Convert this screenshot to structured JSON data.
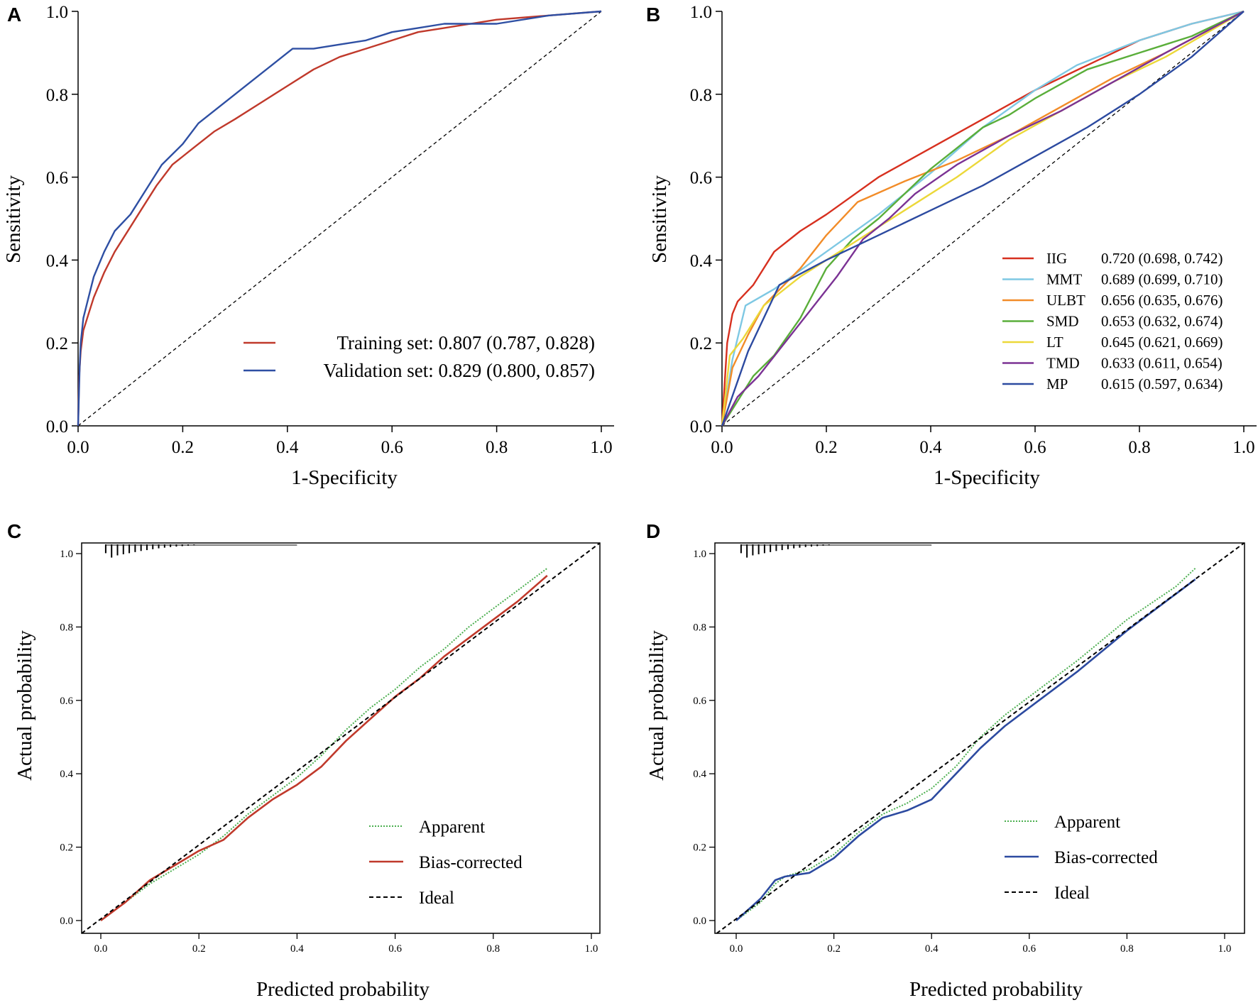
{
  "chart_data": [
    {
      "panel": "A",
      "type": "line",
      "subtype": "roc",
      "xlabel": "1-Specificity",
      "ylabel": "Sensitivity",
      "xlim": [
        0,
        1
      ],
      "ylim": [
        0,
        1
      ],
      "xticks": [
        "0.0",
        "0.2",
        "0.4",
        "0.6",
        "0.8",
        "1.0"
      ],
      "yticks": [
        "0.0",
        "0.2",
        "0.4",
        "0.6",
        "0.8",
        "1.0"
      ],
      "reference_line": "diagonal",
      "legend_position": "bottom-right",
      "series": [
        {
          "name": "Training set",
          "legend": "Training set: 0.807 (0.787, 0.828)",
          "color": "#c0392b",
          "x": [
            0,
            0.002,
            0.005,
            0.01,
            0.02,
            0.03,
            0.05,
            0.07,
            0.1,
            0.12,
            0.15,
            0.18,
            0.22,
            0.26,
            0.3,
            0.35,
            0.4,
            0.45,
            0.5,
            0.55,
            0.6,
            0.65,
            0.7,
            0.8,
            0.9,
            1
          ],
          "y": [
            0,
            0.12,
            0.18,
            0.23,
            0.27,
            0.31,
            0.37,
            0.42,
            0.48,
            0.52,
            0.58,
            0.63,
            0.67,
            0.71,
            0.74,
            0.78,
            0.82,
            0.86,
            0.89,
            0.91,
            0.93,
            0.95,
            0.96,
            0.98,
            0.99,
            1
          ]
        },
        {
          "name": "Validation set",
          "legend": "Validation set: 0.829 (0.800, 0.857)",
          "color": "#2e4fa3",
          "x": [
            0,
            0.003,
            0.005,
            0.01,
            0.02,
            0.03,
            0.05,
            0.07,
            0.1,
            0.13,
            0.16,
            0.2,
            0.23,
            0.27,
            0.3,
            0.34,
            0.38,
            0.41,
            0.45,
            0.5,
            0.55,
            0.6,
            0.65,
            0.7,
            0.8,
            0.9,
            1
          ],
          "y": [
            0,
            0.14,
            0.2,
            0.26,
            0.31,
            0.36,
            0.42,
            0.47,
            0.51,
            0.57,
            0.63,
            0.68,
            0.73,
            0.77,
            0.8,
            0.84,
            0.88,
            0.91,
            0.91,
            0.92,
            0.93,
            0.95,
            0.96,
            0.97,
            0.97,
            0.99,
            1
          ]
        }
      ]
    },
    {
      "panel": "B",
      "type": "line",
      "subtype": "roc",
      "xlabel": "1-Specificity",
      "ylabel": "Sensitivity",
      "xlim": [
        0,
        1
      ],
      "ylim": [
        0,
        1
      ],
      "xticks": [
        "0.0",
        "0.2",
        "0.4",
        "0.6",
        "0.8",
        "1.0"
      ],
      "yticks": [
        "0.0",
        "0.2",
        "0.4",
        "0.6",
        "0.8",
        "1.0"
      ],
      "reference_line": "diagonal",
      "legend_position": "bottom-right",
      "series": [
        {
          "name": "IIG",
          "auc": "0.720 (0.698, 0.742)",
          "color": "#d7301f",
          "x": [
            0,
            0.01,
            0.02,
            0.03,
            0.06,
            0.1,
            0.15,
            0.2,
            0.3,
            0.4,
            0.5,
            0.6,
            0.7,
            0.8,
            0.9,
            1
          ],
          "y": [
            0,
            0.2,
            0.27,
            0.3,
            0.34,
            0.42,
            0.47,
            0.51,
            0.6,
            0.67,
            0.74,
            0.81,
            0.87,
            0.93,
            0.97,
            1
          ]
        },
        {
          "name": "MMT",
          "auc": "0.689 (0.699, 0.710)",
          "color": "#7ec8e3",
          "x": [
            0,
            0.02,
            0.045,
            0.1,
            0.2,
            0.3,
            0.4,
            0.5,
            0.6,
            0.68,
            0.8,
            0.9,
            1
          ],
          "y": [
            0,
            0.16,
            0.29,
            0.33,
            0.42,
            0.51,
            0.61,
            0.72,
            0.81,
            0.87,
            0.93,
            0.97,
            1
          ]
        },
        {
          "name": "ULBT",
          "auc": "0.656 (0.635, 0.676)",
          "color": "#f28c28",
          "x": [
            0,
            0.02,
            0.05,
            0.08,
            0.15,
            0.2,
            0.26,
            0.35,
            0.45,
            0.55,
            0.65,
            0.75,
            0.85,
            1
          ],
          "y": [
            0,
            0.14,
            0.22,
            0.29,
            0.38,
            0.46,
            0.54,
            0.59,
            0.64,
            0.7,
            0.77,
            0.84,
            0.9,
            1
          ]
        },
        {
          "name": "SMD",
          "auc": "0.653 (0.632, 0.674)",
          "color": "#5aae3a",
          "x": [
            0,
            0.03,
            0.06,
            0.1,
            0.15,
            0.2,
            0.25,
            0.3,
            0.35,
            0.4,
            0.45,
            0.5,
            0.55,
            0.6,
            0.7,
            0.8,
            0.9,
            1
          ],
          "y": [
            0,
            0.06,
            0.12,
            0.17,
            0.26,
            0.38,
            0.45,
            0.5,
            0.56,
            0.62,
            0.67,
            0.72,
            0.75,
            0.79,
            0.86,
            0.9,
            0.94,
            1
          ]
        },
        {
          "name": "LT",
          "auc": "0.645 (0.621, 0.669)",
          "color": "#ecd839",
          "x": [
            0,
            0.015,
            0.04,
            0.08,
            0.15,
            0.25,
            0.35,
            0.45,
            0.55,
            0.65,
            0.75,
            0.85,
            1
          ],
          "y": [
            0,
            0.17,
            0.21,
            0.29,
            0.36,
            0.44,
            0.52,
            0.6,
            0.69,
            0.76,
            0.83,
            0.89,
            1
          ]
        },
        {
          "name": "TMD",
          "auc": "0.633 (0.611, 0.654)",
          "color": "#7b3294",
          "x": [
            0,
            0.03,
            0.07,
            0.12,
            0.17,
            0.22,
            0.27,
            0.32,
            0.37,
            0.45,
            0.55,
            0.65,
            0.75,
            0.85,
            1
          ],
          "y": [
            0,
            0.07,
            0.12,
            0.2,
            0.28,
            0.36,
            0.45,
            0.5,
            0.56,
            0.63,
            0.7,
            0.76,
            0.83,
            0.9,
            1
          ]
        },
        {
          "name": "MP",
          "auc": "0.615 (0.597, 0.634)",
          "color": "#2c4aa0",
          "x": [
            0,
            0.05,
            0.11,
            0.2,
            0.3,
            0.4,
            0.5,
            0.6,
            0.7,
            0.8,
            0.9,
            1
          ],
          "y": [
            0,
            0.18,
            0.34,
            0.4,
            0.46,
            0.52,
            0.58,
            0.65,
            0.72,
            0.8,
            0.89,
            1
          ]
        }
      ]
    },
    {
      "panel": "C",
      "type": "line",
      "subtype": "calibration",
      "xlabel": "Predicted probability",
      "ylabel": "Actual probability",
      "xlim": [
        0,
        1
      ],
      "ylim": [
        0,
        1
      ],
      "xticks": [
        "0.0",
        "0.2",
        "0.4",
        "0.6",
        "0.8",
        "1.0"
      ],
      "yticks": [
        "0.0",
        "0.2",
        "0.4",
        "0.6",
        "0.8",
        "1.0"
      ],
      "legend_position": "bottom-right",
      "series": [
        {
          "name": "Apparent",
          "style": "dotted",
          "color": "#4caf50",
          "x": [
            0,
            0.05,
            0.1,
            0.15,
            0.2,
            0.25,
            0.3,
            0.35,
            0.4,
            0.45,
            0.5,
            0.55,
            0.6,
            0.65,
            0.7,
            0.75,
            0.8,
            0.85,
            0.91
          ],
          "y": [
            0,
            0.05,
            0.1,
            0.14,
            0.18,
            0.23,
            0.29,
            0.34,
            0.39,
            0.45,
            0.52,
            0.58,
            0.63,
            0.69,
            0.74,
            0.8,
            0.85,
            0.9,
            0.96
          ]
        },
        {
          "name": "Bias-corrected",
          "style": "solid",
          "color": "#c0392b",
          "x": [
            0,
            0.05,
            0.1,
            0.15,
            0.2,
            0.25,
            0.3,
            0.35,
            0.4,
            0.45,
            0.5,
            0.55,
            0.6,
            0.65,
            0.7,
            0.75,
            0.8,
            0.85,
            0.91
          ],
          "y": [
            0,
            0.05,
            0.11,
            0.15,
            0.19,
            0.22,
            0.28,
            0.33,
            0.37,
            0.42,
            0.49,
            0.55,
            0.61,
            0.66,
            0.72,
            0.77,
            0.82,
            0.87,
            0.94
          ]
        },
        {
          "name": "Ideal",
          "style": "dashed",
          "color": "#000000",
          "x": [
            -0.04,
            1.04
          ],
          "y": [
            -0.04,
            1.04
          ]
        }
      ],
      "rug_tick_heights": [
        0.04,
        0.06,
        0.05,
        0.045,
        0.04,
        0.035,
        0.03,
        0.026,
        0.022,
        0.018,
        0.015,
        0.012,
        0.01,
        0.008,
        0.006,
        0.005
      ]
    },
    {
      "panel": "D",
      "type": "line",
      "subtype": "calibration",
      "xlabel": "Predicted probability",
      "ylabel": "Actual probability",
      "xlim": [
        0,
        1
      ],
      "ylim": [
        0,
        1
      ],
      "xticks": [
        "0.0",
        "0.2",
        "0.4",
        "0.6",
        "0.8",
        "1.0"
      ],
      "yticks": [
        "0.0",
        "0.2",
        "0.4",
        "0.6",
        "0.8",
        "1.0"
      ],
      "legend_position": "bottom-right",
      "series": [
        {
          "name": "Apparent",
          "style": "dotted",
          "color": "#4caf50",
          "x": [
            0,
            0.05,
            0.08,
            0.1,
            0.15,
            0.2,
            0.25,
            0.3,
            0.35,
            0.4,
            0.45,
            0.5,
            0.55,
            0.6,
            0.7,
            0.8,
            0.9,
            0.94
          ],
          "y": [
            0,
            0.05,
            0.1,
            0.12,
            0.14,
            0.18,
            0.24,
            0.29,
            0.32,
            0.36,
            0.42,
            0.5,
            0.56,
            0.61,
            0.71,
            0.82,
            0.91,
            0.96
          ]
        },
        {
          "name": "Bias-corrected",
          "style": "solid",
          "color": "#2c4aa0",
          "x": [
            0,
            0.05,
            0.08,
            0.1,
            0.15,
            0.2,
            0.25,
            0.3,
            0.35,
            0.4,
            0.45,
            0.5,
            0.55,
            0.6,
            0.7,
            0.8,
            0.9,
            0.94
          ],
          "y": [
            0,
            0.06,
            0.11,
            0.12,
            0.13,
            0.17,
            0.23,
            0.28,
            0.3,
            0.33,
            0.4,
            0.47,
            0.53,
            0.58,
            0.68,
            0.79,
            0.89,
            0.93
          ]
        },
        {
          "name": "Ideal",
          "style": "dashed",
          "color": "#000000",
          "x": [
            -0.04,
            1.04
          ],
          "y": [
            -0.04,
            1.04
          ]
        }
      ],
      "rug_tick_heights": [
        0.04,
        0.06,
        0.05,
        0.045,
        0.04,
        0.035,
        0.03,
        0.026,
        0.022,
        0.018,
        0.015,
        0.012,
        0.01,
        0.008,
        0.006,
        0.005
      ]
    }
  ],
  "panels": {
    "a": {
      "letter": "A",
      "xlabel": "1-Specificity",
      "ylabel": "Sensitivity",
      "legend": [
        {
          "label": "Training set: 0.807 (0.787, 0.828)"
        },
        {
          "label": "Validation set: 0.829 (0.800, 0.857)"
        }
      ]
    },
    "b": {
      "letter": "B",
      "xlabel": "1-Specificity",
      "ylabel": "Sensitivity"
    },
    "c": {
      "letter": "C",
      "xlabel": "Predicted probability",
      "ylabel": "Actual probability",
      "legend": [
        {
          "label": "Apparent"
        },
        {
          "label": "Bias-corrected"
        },
        {
          "label": "Ideal"
        }
      ]
    },
    "d": {
      "letter": "D",
      "xlabel": "Predicted probability",
      "ylabel": "Actual probability",
      "legend": [
        {
          "label": "Apparent"
        },
        {
          "label": "Bias-corrected"
        },
        {
          "label": "Ideal"
        }
      ]
    }
  }
}
